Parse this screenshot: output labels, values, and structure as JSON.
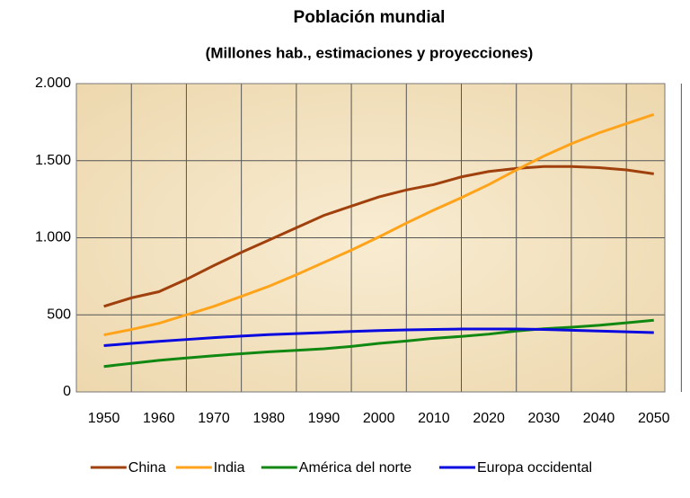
{
  "chart_data": {
    "type": "line",
    "title": "Población mundial",
    "subtitle": "(Millones hab., estimaciones y proyecciones)",
    "x": [
      1950,
      1955,
      1960,
      1965,
      1970,
      1975,
      1980,
      1985,
      1990,
      1995,
      2000,
      2005,
      2010,
      2015,
      2020,
      2025,
      2030,
      2035,
      2040,
      2045,
      2050
    ],
    "series": [
      {
        "name": "China",
        "color": "#a0410d",
        "values": [
          555,
          610,
          650,
          730,
          820,
          905,
          985,
          1065,
          1145,
          1205,
          1265,
          1310,
          1345,
          1395,
          1430,
          1450,
          1462,
          1462,
          1455,
          1440,
          1415
        ]
      },
      {
        "name": "India",
        "color": "#ffa31a",
        "values": [
          370,
          405,
          445,
          500,
          555,
          620,
          685,
          760,
          840,
          920,
          1005,
          1095,
          1180,
          1260,
          1345,
          1440,
          1530,
          1610,
          1680,
          1740,
          1800
        ]
      },
      {
        "name": "América del norte",
        "color": "#118811",
        "values": [
          165,
          185,
          205,
          220,
          235,
          248,
          260,
          270,
          280,
          295,
          315,
          330,
          348,
          360,
          375,
          395,
          410,
          420,
          432,
          448,
          465
        ]
      },
      {
        "name": "Europa occidental",
        "color": "#0a0ae0",
        "values": [
          300,
          315,
          328,
          340,
          352,
          362,
          372,
          378,
          385,
          392,
          398,
          402,
          405,
          408,
          408,
          408,
          405,
          400,
          395,
          390,
          385
        ]
      }
    ],
    "xlim": [
      1945,
      2052
    ],
    "xticks": [
      1950,
      1960,
      1970,
      1980,
      1990,
      2000,
      2010,
      2020,
      2030,
      2040,
      2050
    ],
    "ylim": [
      0,
      2000
    ],
    "yticks": [
      0,
      {
        "value": 500,
        "label": "500"
      },
      {
        "value": 1000,
        "label": "1.000"
      },
      {
        "value": 1500,
        "label": "1.500"
      },
      {
        "value": 2000,
        "label": "2.000"
      }
    ],
    "grid": true,
    "legend": "bottom"
  }
}
